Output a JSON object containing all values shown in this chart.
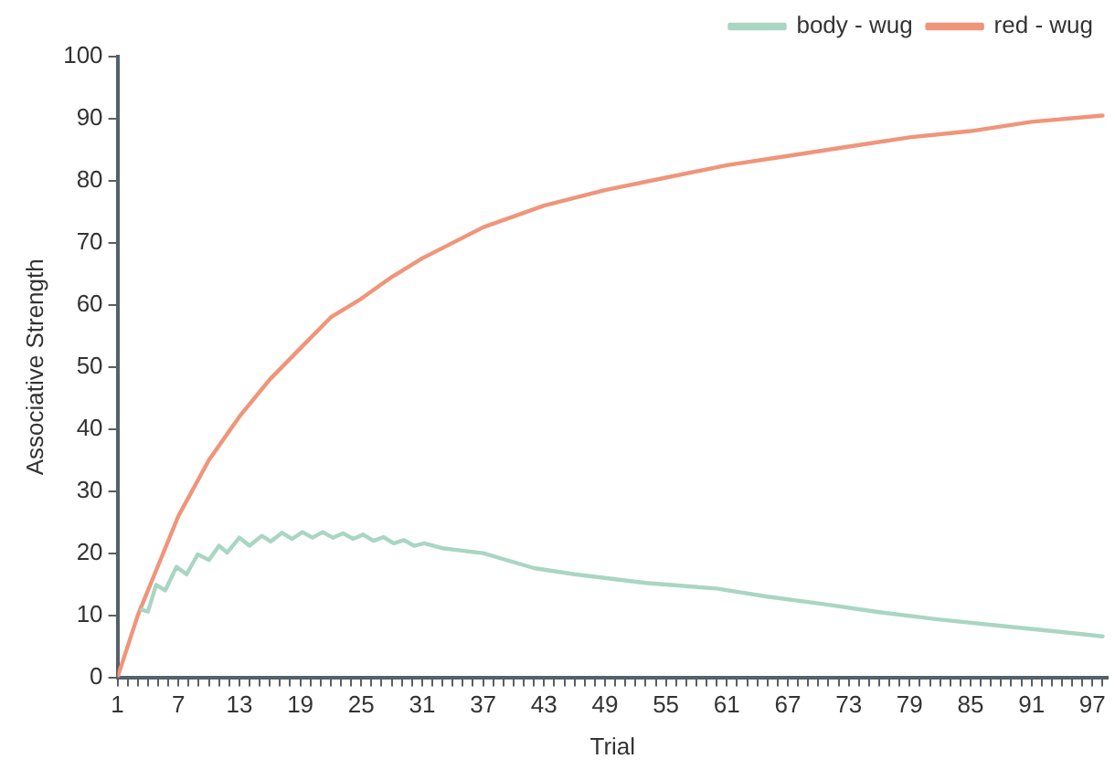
{
  "chart_data": {
    "type": "line",
    "xlabel": "Trial",
    "ylabel": "Associative Strength",
    "xlim": [
      1,
      98.5
    ],
    "ylim": [
      0,
      100
    ],
    "yticks": [
      0,
      10,
      20,
      30,
      40,
      50,
      60,
      70,
      80,
      90,
      100
    ],
    "xticks": [
      1,
      {
        "value": 2,
        "label": null
      },
      {
        "value": 3,
        "label": null
      },
      {
        "value": 4,
        "label": null
      },
      {
        "value": 5,
        "label": null
      },
      {
        "value": 6,
        "label": null
      },
      7,
      {
        "value": 8,
        "label": null
      },
      {
        "value": 9,
        "label": null
      },
      {
        "value": 10,
        "label": null
      },
      {
        "value": 11,
        "label": null
      },
      {
        "value": 12,
        "label": null
      },
      13,
      {
        "value": 14,
        "label": null
      },
      {
        "value": 15,
        "label": null
      },
      {
        "value": 16,
        "label": null
      },
      {
        "value": 17,
        "label": null
      },
      {
        "value": 18,
        "label": null
      },
      19,
      {
        "value": 20,
        "label": null
      },
      {
        "value": 21,
        "label": null
      },
      {
        "value": 22,
        "label": null
      },
      {
        "value": 23,
        "label": null
      },
      {
        "value": 24,
        "label": null
      },
      25,
      {
        "value": 26,
        "label": null
      },
      {
        "value": 27,
        "label": null
      },
      {
        "value": 28,
        "label": null
      },
      {
        "value": 29,
        "label": null
      },
      {
        "value": 30,
        "label": null
      },
      31,
      {
        "value": 32,
        "label": null
      },
      {
        "value": 33,
        "label": null
      },
      {
        "value": 34,
        "label": null
      },
      {
        "value": 35,
        "label": null
      },
      {
        "value": 36,
        "label": null
      },
      37,
      {
        "value": 38,
        "label": null
      },
      {
        "value": 39,
        "label": null
      },
      {
        "value": 40,
        "label": null
      },
      {
        "value": 41,
        "label": null
      },
      {
        "value": 42,
        "label": null
      },
      43,
      {
        "value": 44,
        "label": null
      },
      {
        "value": 45,
        "label": null
      },
      {
        "value": 46,
        "label": null
      },
      {
        "value": 47,
        "label": null
      },
      {
        "value": 48,
        "label": null
      },
      49,
      {
        "value": 50,
        "label": null
      },
      {
        "value": 51,
        "label": null
      },
      {
        "value": 52,
        "label": null
      },
      {
        "value": 53,
        "label": null
      },
      {
        "value": 54,
        "label": null
      },
      55,
      {
        "value": 56,
        "label": null
      },
      {
        "value": 57,
        "label": null
      },
      {
        "value": 58,
        "label": null
      },
      {
        "value": 59,
        "label": null
      },
      {
        "value": 60,
        "label": null
      },
      61,
      {
        "value": 62,
        "label": null
      },
      {
        "value": 63,
        "label": null
      },
      {
        "value": 64,
        "label": null
      },
      {
        "value": 65,
        "label": null
      },
      {
        "value": 66,
        "label": null
      },
      67,
      {
        "value": 68,
        "label": null
      },
      {
        "value": 69,
        "label": null
      },
      {
        "value": 70,
        "label": null
      },
      {
        "value": 71,
        "label": null
      },
      {
        "value": 72,
        "label": null
      },
      73,
      {
        "value": 74,
        "label": null
      },
      {
        "value": 75,
        "label": null
      },
      {
        "value": 76,
        "label": null
      },
      {
        "value": 77,
        "label": null
      },
      {
        "value": 78,
        "label": null
      },
      79,
      {
        "value": 80,
        "label": null
      },
      {
        "value": 81,
        "label": null
      },
      {
        "value": 82,
        "label": null
      },
      {
        "value": 83,
        "label": null
      },
      {
        "value": 84,
        "label": null
      },
      85,
      {
        "value": 86,
        "label": null
      },
      {
        "value": 87,
        "label": null
      },
      {
        "value": 88,
        "label": null
      },
      {
        "value": 89,
        "label": null
      },
      {
        "value": 90,
        "label": null
      },
      91,
      {
        "value": 92,
        "label": null
      },
      {
        "value": 93,
        "label": null
      },
      {
        "value": 94,
        "label": null
      },
      {
        "value": 95,
        "label": null
      },
      {
        "value": 96,
        "label": null
      },
      97,
      {
        "value": 98,
        "label": null
      }
    ],
    "grid": false,
    "legend": "top right",
    "marker": "none",
    "line_style": "solid",
    "series": [
      {
        "name": "body - wug",
        "color": "#a9d6c2",
        "x": [
          3.4,
          4,
          4.8,
          5.7,
          6.8,
          7.8,
          8.9,
          10,
          11,
          11.8,
          13,
          14,
          15.2,
          16.1,
          17.2,
          18.2,
          19.2,
          20.2,
          21.2,
          22.2,
          23.2,
          24.2,
          25.2,
          26.2,
          27.2,
          28.2,
          29.2,
          30.2,
          31.2,
          33,
          37,
          42,
          46,
          53,
          60,
          65,
          70.5,
          76,
          82,
          88,
          94,
          98
        ],
        "values": [
          10.9,
          10.6,
          14.9,
          14,
          17.8,
          16.6,
          19.8,
          18.9,
          21.2,
          20.1,
          22.5,
          21.2,
          22.8,
          21.9,
          23.3,
          22.3,
          23.4,
          22.5,
          23.4,
          22.5,
          23.2,
          22.3,
          23,
          22,
          22.6,
          21.6,
          22.1,
          21.2,
          21.6,
          20.8,
          20,
          17.6,
          16.6,
          15.2,
          14.3,
          13,
          11.8,
          10.5,
          9.3,
          8.3,
          7.3,
          6.6
        ]
      },
      {
        "name": "red - wug",
        "color": "#f0957a",
        "x": [
          1,
          2,
          3,
          4,
          5,
          7,
          10,
          13,
          16,
          19,
          22,
          25,
          28,
          31,
          34,
          37,
          43,
          49,
          55,
          61,
          67,
          73,
          79,
          85,
          91,
          98
        ],
        "values": [
          0,
          5,
          10,
          14,
          18,
          26,
          35,
          42,
          48,
          53,
          58,
          61,
          64.5,
          67.5,
          70,
          72.5,
          76,
          78.5,
          80.5,
          82.5,
          84,
          85.5,
          87,
          88,
          89.5,
          90.5
        ]
      }
    ]
  }
}
